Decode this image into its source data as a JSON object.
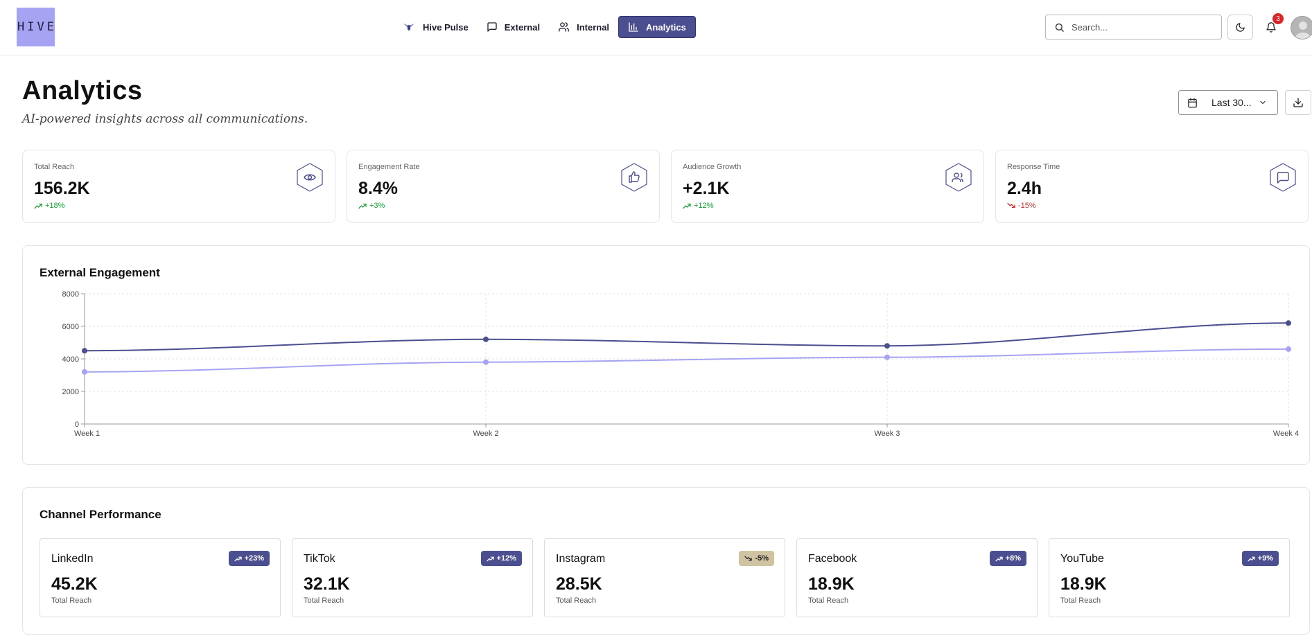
{
  "app": {
    "logo_text": "HIVE"
  },
  "nav": {
    "items": [
      {
        "label": "Hive Pulse",
        "icon": "bee-icon",
        "active": false
      },
      {
        "label": "External",
        "icon": "message-square-icon",
        "active": false
      },
      {
        "label": "Internal",
        "icon": "users-icon",
        "active": false
      },
      {
        "label": "Analytics",
        "icon": "bar-chart-icon",
        "active": true
      }
    ]
  },
  "header_right": {
    "search_placeholder": "Search...",
    "theme_icon": "moon-icon",
    "notification_icon": "bell-icon",
    "notification_count": "3",
    "avatar_icon": "user-avatar"
  },
  "page": {
    "title": "Analytics",
    "subtitle": "AI-powered insights across all communications.",
    "date_range_label": "Last 30...",
    "date_icon": "calendar-icon",
    "download_icon": "download-icon"
  },
  "colors": {
    "accent": "#4b4e8f",
    "accent_light": "#a7a3f3",
    "positive": "#1f9d3a",
    "negative": "#d42a2a",
    "warning_bg": "#cfc3a1"
  },
  "stats": [
    {
      "label": "Total Reach",
      "value": "156.2K",
      "change": "+18%",
      "trend": "up",
      "icon": "eye-icon"
    },
    {
      "label": "Engagement Rate",
      "value": "8.4%",
      "change": "+3%",
      "trend": "up",
      "icon": "thumbs-up-icon"
    },
    {
      "label": "Audience Growth",
      "value": "+2.1K",
      "change": "+12%",
      "trend": "up",
      "icon": "users-icon"
    },
    {
      "label": "Response Time",
      "value": "2.4h",
      "change": "-15%",
      "trend": "down",
      "icon": "message-square-icon"
    }
  ],
  "engagement": {
    "title": "External Engagement"
  },
  "chart_data": {
    "type": "line",
    "title": "External Engagement",
    "xlabel": "",
    "ylabel": "",
    "x": [
      "Week 1",
      "Week 2",
      "Week 3",
      "Week 4"
    ],
    "ylim": [
      0,
      8000
    ],
    "yticks": [
      "0",
      "2000",
      "4000",
      "6000",
      "8000"
    ],
    "grid": true,
    "series": [
      {
        "color": "#4b4e8f",
        "values": [
          4500,
          5200,
          4800,
          6200
        ]
      },
      {
        "color": "#a7a3f3",
        "values": [
          3200,
          3800,
          4100,
          4600
        ]
      }
    ]
  },
  "channels": {
    "title": "Channel Performance",
    "items": [
      {
        "name": "LinkedIn",
        "value": "45.2K",
        "sub": "Total Reach",
        "change": "+23%",
        "trend": "up"
      },
      {
        "name": "TikTok",
        "value": "32.1K",
        "sub": "Total Reach",
        "change": "+12%",
        "trend": "up"
      },
      {
        "name": "Instagram",
        "value": "28.5K",
        "sub": "Total Reach",
        "change": "-5%",
        "trend": "down"
      },
      {
        "name": "Facebook",
        "value": "18.9K",
        "sub": "Total Reach",
        "change": "+8%",
        "trend": "up"
      },
      {
        "name": "YouTube",
        "value": "18.9K",
        "sub": "Total Reach",
        "change": "+9%",
        "trend": "up"
      }
    ]
  }
}
